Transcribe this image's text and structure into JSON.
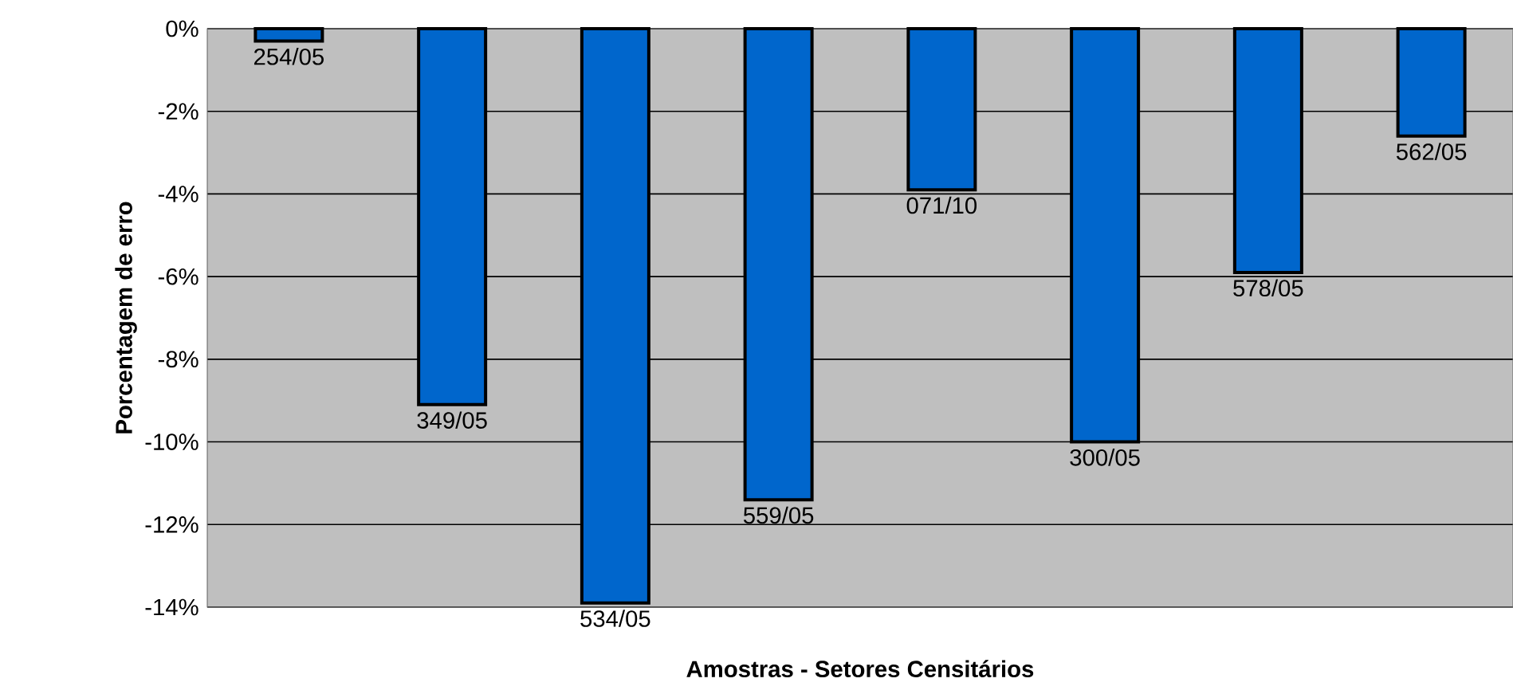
{
  "chart_data": {
    "type": "bar",
    "xlabel": "Amostras - Setores Censitários",
    "ylabel": "Porcentagem de erro",
    "categories": [
      null,
      null,
      null,
      null,
      null,
      null,
      null,
      null
    ],
    "values": [
      -0.3,
      -9.1,
      -13.9,
      -11.4,
      -3.9,
      -10.0,
      -5.9,
      -2.6
    ],
    "color": "#0066cc",
    "ylim": [
      -14,
      0
    ],
    "yticks": [
      {
        "value": 0,
        "label": "0%"
      },
      {
        "value": -2,
        "label": "-2%"
      },
      {
        "value": -4,
        "label": "-4%"
      },
      {
        "value": -6,
        "label": "-6%"
      },
      {
        "value": -8,
        "label": "-8%"
      },
      {
        "value": -10,
        "label": "-10%"
      },
      {
        "value": -12,
        "label": "-12%"
      },
      {
        "value": -14,
        "label": "-14%"
      }
    ],
    "annotations": [
      "254/05",
      "349/05",
      "534/05",
      "559/05",
      "071/10",
      "300/05",
      "578/05",
      "562/05"
    ],
    "grid": "y"
  }
}
